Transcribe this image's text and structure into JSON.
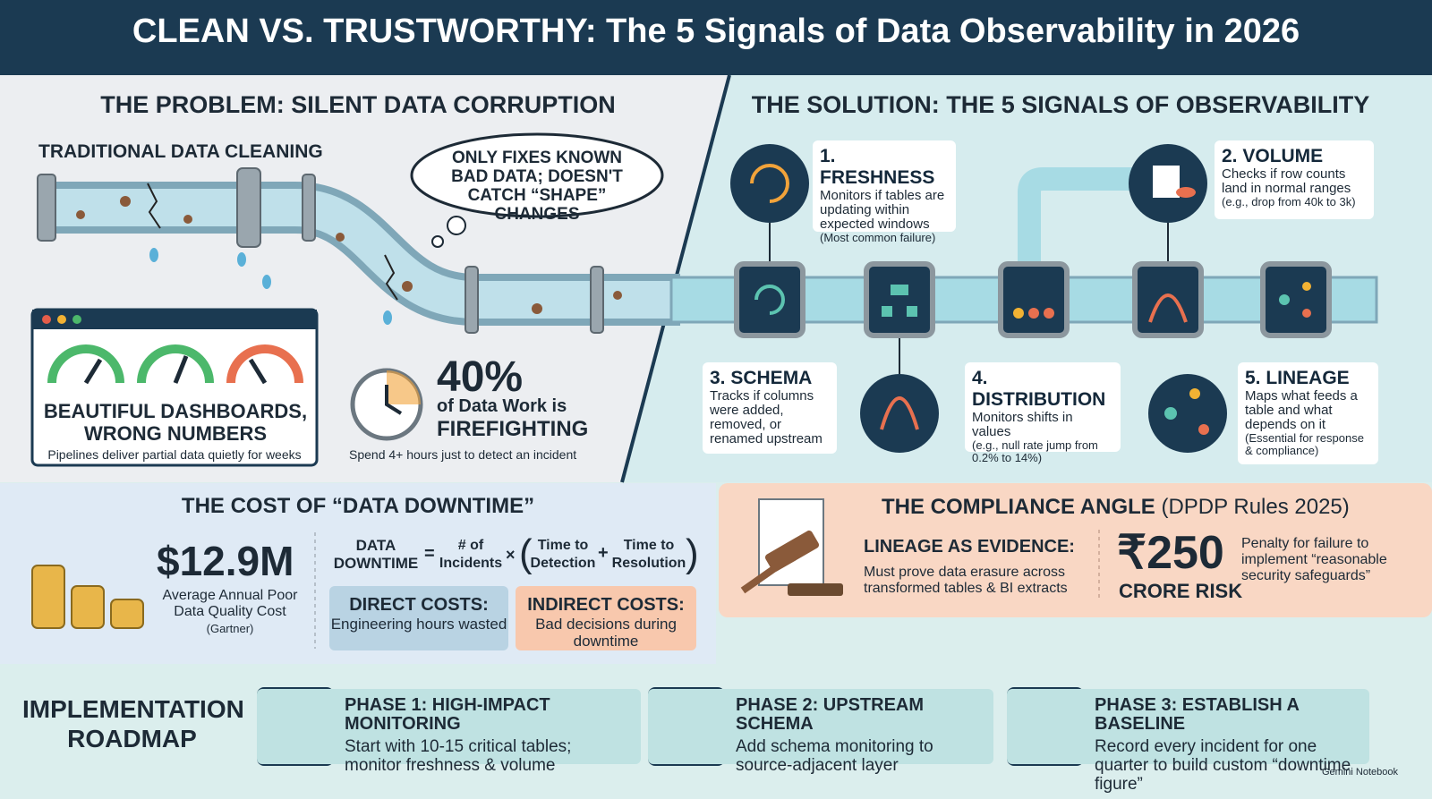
{
  "header": {
    "title": "CLEAN VS. TRUSTWORTHY: The 5 Signals of Data Observability in 2026"
  },
  "problem": {
    "title": "THE PROBLEM: SILENT DATA CORRUPTION",
    "pipe_label": "TRADITIONAL DATA CLEANING",
    "thought": "ONLY FIXES KNOWN BAD DATA; DOESN'T CATCH “SHAPE” CHANGES",
    "dashboard": {
      "title": "BEAUTIFUL DASHBOARDS, WRONG NUMBERS",
      "caption": "Pipelines deliver partial data quietly for weeks"
    },
    "stat": {
      "value": "40%",
      "line1": "of Data Work is",
      "line2": "FIREFIGHTING",
      "caption": "Spend 4+ hours just to detect an incident"
    }
  },
  "solution": {
    "title": "THE SOLUTION: THE 5 SIGNALS OF OBSERVABILITY",
    "signals": [
      {
        "title": "1. FRESHNESS",
        "text": "Monitors if tables are updating within expected windows",
        "note": "(Most common failure)"
      },
      {
        "title": "2. VOLUME",
        "text": "Checks if row counts land in normal ranges",
        "note": "(e.g., drop from 40k to 3k)"
      },
      {
        "title": "3. SCHEMA",
        "text": "Tracks if columns were added, removed, or renamed upstream"
      },
      {
        "title": "4. DISTRIBUTION",
        "text": "Monitors shifts in values",
        "note": "(e.g., null rate jump from 0.2% to 14%)"
      },
      {
        "title": "5. LINEAGE",
        "text": "Maps what feeds a table and what depends on it",
        "note": "(Essential for response & compliance)"
      }
    ]
  },
  "cost": {
    "title": "THE COST OF “DATA DOWNTIME”",
    "amount": "$12.9M",
    "amount_caption": "Average Annual Poor Data Quality Cost",
    "source": "(Gartner)",
    "formula": {
      "lhs": "DATA DOWNTIME",
      "equals": "=",
      "incidents": "# of Incidents",
      "times": "×",
      "detection": "Time to Detection",
      "plus": "+",
      "resolution": "Time to Resolution"
    },
    "direct": {
      "title": "DIRECT COSTS:",
      "text": "Engineering hours wasted"
    },
    "indirect": {
      "title": "INDIRECT COSTS:",
      "text": "Bad decisions during downtime"
    }
  },
  "compliance": {
    "title": "THE COMPLIANCE ANGLE",
    "subtitle": "(DPDP Rules 2025)",
    "lineage_title": "LINEAGE AS EVIDENCE:",
    "lineage_text": "Must prove data erasure across transformed tables & BI extracts",
    "risk_amount": "₹250",
    "risk_label": "CRORE RISK",
    "risk_text": "Penalty for failure to implement “reasonable security safeguards”"
  },
  "roadmap": {
    "title": "IMPLEMENTATION ROADMAP",
    "phases": [
      {
        "title": "PHASE 1: HIGH-IMPACT MONITORING",
        "text": "Start with 10-15 critical tables; monitor freshness & volume"
      },
      {
        "title": "PHASE 2: UPSTREAM SCHEMA",
        "text": "Add schema monitoring to source-adjacent layer"
      },
      {
        "title": "PHASE 3: ESTABLISH A BASELINE",
        "text": "Record every incident for one quarter to build custom “downtime figure”"
      }
    ]
  },
  "footer": {
    "credit": "Gemini Notebook"
  }
}
